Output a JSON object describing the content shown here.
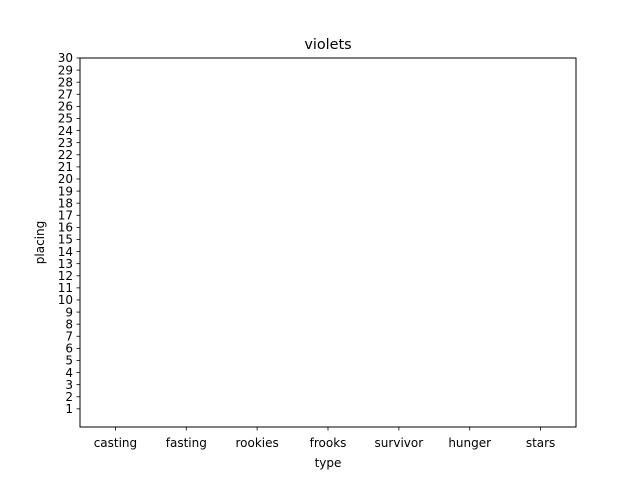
{
  "chart_data": {
    "type": "bar",
    "title": "violets",
    "xlabel": "type",
    "ylabel": "placing",
    "categories": [
      "casting",
      "fasting",
      "rookies",
      "frooks",
      "survivor",
      "hunger",
      "stars"
    ],
    "series": [
      {
        "values": [
          0,
          0,
          0,
          0,
          0,
          0,
          0
        ]
      }
    ],
    "ylim": [
      0,
      30
    ],
    "yticks": [
      1,
      2,
      3,
      4,
      5,
      6,
      7,
      8,
      9,
      10,
      11,
      12,
      13,
      14,
      15,
      16,
      17,
      18,
      19,
      20,
      21,
      22,
      23,
      24,
      25,
      26,
      27,
      28,
      29,
      30
    ],
    "grid": false,
    "legend": "none"
  }
}
